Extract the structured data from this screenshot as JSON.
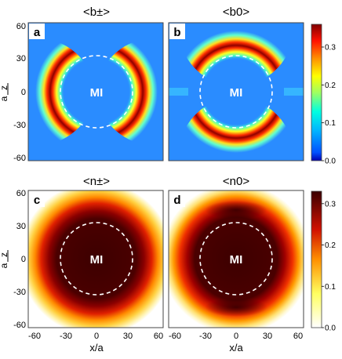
{
  "chart_data": [
    {
      "type": "heatmap",
      "panel_letter": "a",
      "title": "<b±>",
      "x_range": [
        -65,
        65
      ],
      "y_range": [
        -65,
        65
      ],
      "y_ticks": [
        "60",
        "30",
        "0",
        "-30",
        "-60"
      ],
      "ylabel_top": "z",
      "ylabel_bottom": "a",
      "annotation": "MI",
      "mi_radius": 35,
      "pattern": "left and right crescents between r=35 and r=55",
      "peak_value": 0.36
    },
    {
      "type": "heatmap",
      "panel_letter": "b",
      "title": "<b0>",
      "x_range": [
        -65,
        65
      ],
      "y_range": [
        -65,
        65
      ],
      "annotation": "MI",
      "mi_radius": 35,
      "pattern": "top and bottom crescents between r=35 and r=55",
      "peak_value": 0.36
    },
    {
      "type": "heatmap",
      "panel_letter": "c",
      "title": "<n±>",
      "x_range": [
        -65,
        65
      ],
      "y_range": [
        -65,
        65
      ],
      "x_ticks": [
        "-60",
        "-30",
        "0",
        "30",
        "60"
      ],
      "y_ticks": [
        "60",
        "30",
        "0",
        "-30",
        "-60"
      ],
      "xlabel": "x/a",
      "ylabel_top": "z",
      "ylabel_bottom": "a",
      "annotation": "MI",
      "mi_radius": 35,
      "pattern": "radially decreasing density",
      "peak_value": 0.33
    },
    {
      "type": "heatmap",
      "panel_letter": "d",
      "title": "<n0>",
      "x_range": [
        -65,
        65
      ],
      "y_range": [
        -65,
        65
      ],
      "x_ticks": [
        "-60",
        "-30",
        "0",
        "30",
        "60"
      ],
      "xlabel": "x/a",
      "annotation": "MI",
      "mi_radius": 35,
      "pattern": "radially decreasing density with top/bottom lobes",
      "peak_value": 0.33
    }
  ],
  "colorbar_top": {
    "ticks": [
      "0.3",
      "0.2",
      "0.1",
      "0.0"
    ],
    "tick_values": [
      0.3,
      0.2,
      0.1,
      0.0
    ],
    "range": [
      0,
      0.36
    ],
    "colormap": "jet"
  },
  "colorbar_bottom": {
    "ticks": [
      "0.3",
      "0.2",
      "0.1",
      "0.0"
    ],
    "tick_values": [
      0.3,
      0.2,
      0.1,
      0.0
    ],
    "range": [
      0,
      0.33
    ],
    "colormap": "hot"
  },
  "colors": {
    "jet_background": "#2a8cff",
    "hot_dark": "#3d0000",
    "dashed_circle": "#ffffff"
  }
}
